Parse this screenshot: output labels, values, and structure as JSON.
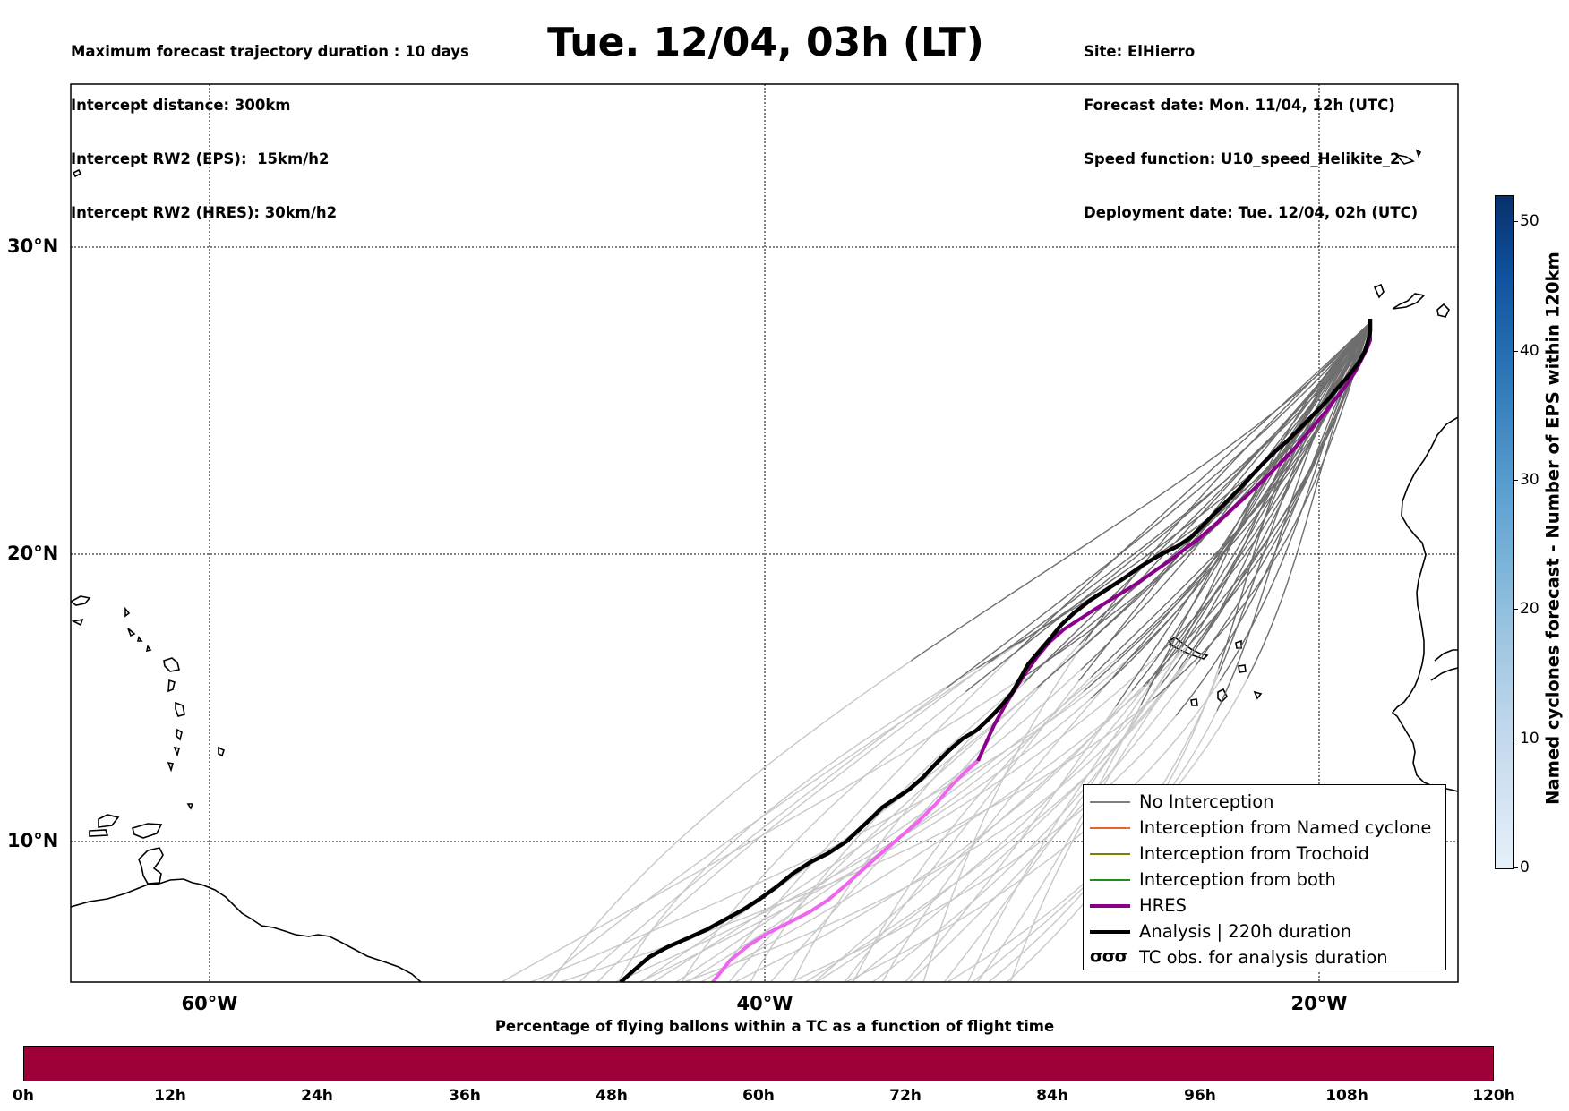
{
  "header": {
    "left_lines": [
      "Maximum forecast trajectory duration : 10 days",
      "Intercept distance: 300km",
      "Intercept RW2 (EPS):  15km/h2",
      "Intercept RW2 (HRES): 30km/h2"
    ],
    "title": "Tue. 12/04, 03h (LT)",
    "right_lines": [
      "Site: ElHierro",
      "Forecast date: Mon. 11/04, 12h (UTC)",
      "Speed function: U10_speed_Helikite_2",
      "Deployment date: Tue. 12/04, 02h (UTC)"
    ]
  },
  "map": {
    "lat_labels": [
      "30°N",
      "20°N",
      "10°N"
    ],
    "lon_labels": [
      "60°W",
      "40°W",
      "20°W"
    ]
  },
  "legend": {
    "items": [
      {
        "label": "No Interception",
        "color": "#808080"
      },
      {
        "label": "Interception from Named cyclone",
        "color": "#e8602c"
      },
      {
        "label": "Interception from Trochoid",
        "color": "#808000"
      },
      {
        "label": "Interception from both",
        "color": "#228b22"
      },
      {
        "label": "HRES",
        "color": "#8b008b"
      },
      {
        "label": "Analysis | 220h duration",
        "color": "#000000"
      },
      {
        "label": "TC obs. for analysis duration",
        "glyph": "σσσ"
      }
    ]
  },
  "colorbar": {
    "label": "Named cyclones forecast - Number of EPS within 120km",
    "ticks": [
      "0",
      "10",
      "20",
      "30",
      "40",
      "50"
    ]
  },
  "percentage_bar": {
    "title": "Percentage of flying ballons within a TC as a function of flight time",
    "ticks": [
      "0h",
      "12h",
      "24h",
      "36h",
      "48h",
      "60h",
      "72h",
      "84h",
      "96h",
      "108h",
      "120h"
    ],
    "color": "#9e003a"
  }
}
